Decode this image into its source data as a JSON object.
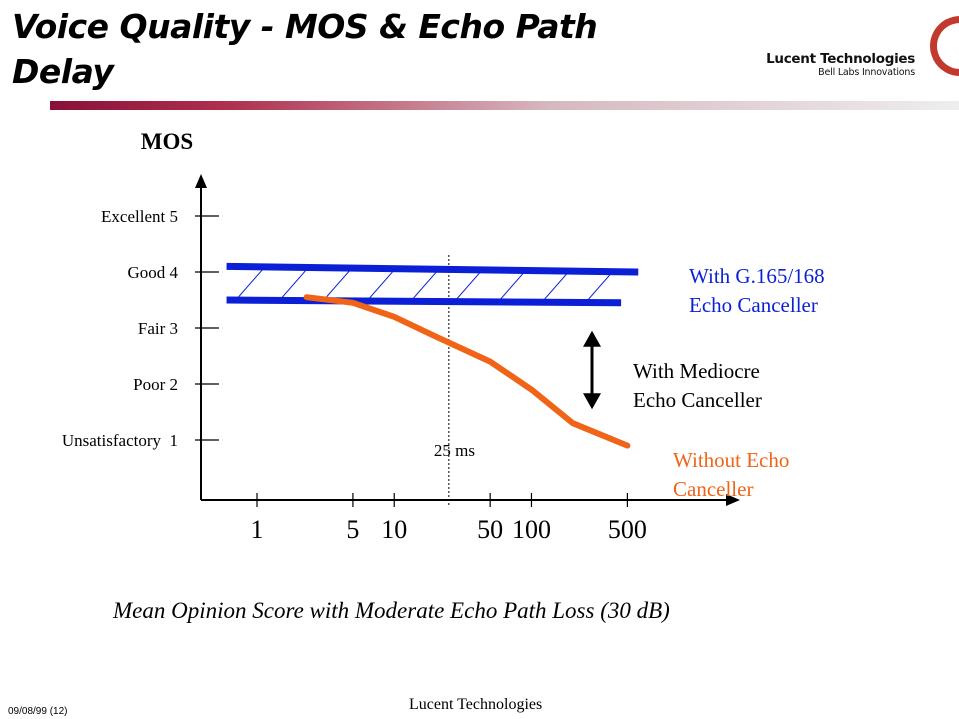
{
  "slide": {
    "title_line1": "Voice Quality - MOS & Echo Path",
    "title_line2": "Delay",
    "logo_name": "Lucent Technologies",
    "logo_tagline": "Bell Labs Innovations",
    "subtitle": "Mean Opinion Score with Moderate Echo Path Loss (30 dB)",
    "footer_center": "Lucent Technologies",
    "footer_left": "09/08/99  (12)"
  },
  "colors": {
    "canceller_band": "#0a1fd6",
    "no_canceller": "#f06418",
    "axis": "#000000",
    "title_bar": "#8a1038"
  },
  "chart_data": {
    "type": "line",
    "ylabel": "MOS",
    "y_ticks": [
      {
        "value": 5,
        "label": "Excellent 5"
      },
      {
        "value": 4,
        "label": "Good 4"
      },
      {
        "value": 3,
        "label": "Fair 3"
      },
      {
        "value": 2,
        "label": "Poor 2"
      },
      {
        "value": 1,
        "label": "Unsatisfactory  1"
      }
    ],
    "x_scale": "log",
    "x_ticks": [
      1,
      5,
      10,
      50,
      100,
      500
    ],
    "reference_line": {
      "x": 25,
      "label": "25 ms"
    },
    "series": [
      {
        "name": "With G.165/168 Echo Canceller",
        "kind": "band",
        "upper": {
          "x": [
            0.6,
            600
          ],
          "y": [
            4.1,
            4.0
          ]
        },
        "lower": {
          "x": [
            0.6,
            450
          ],
          "y": [
            3.5,
            3.45
          ]
        }
      },
      {
        "name": "Without Echo Canceller",
        "values": [
          {
            "x": 2.3,
            "y": 3.55
          },
          {
            "x": 5,
            "y": 3.45
          },
          {
            "x": 10,
            "y": 3.2
          },
          {
            "x": 20,
            "y": 2.85
          },
          {
            "x": 50,
            "y": 2.4
          },
          {
            "x": 100,
            "y": 1.9
          },
          {
            "x": 200,
            "y": 1.3
          },
          {
            "x": 500,
            "y": 0.9
          }
        ]
      }
    ],
    "annotations": [
      {
        "label": "With G.165/168 Echo Canceller",
        "lines": [
          "With G.165/168",
          "Echo Canceller"
        ]
      },
      {
        "label": "With Mediocre Echo Canceller",
        "lines": [
          "With Mediocre",
          "Echo Canceller"
        ]
      },
      {
        "label": "Without Echo Canceller",
        "lines": [
          "Without Echo",
          "Canceller"
        ]
      }
    ],
    "mediocre_range": {
      "x": 500,
      "y_top": 2.95,
      "y_bottom": 1.55
    }
  }
}
